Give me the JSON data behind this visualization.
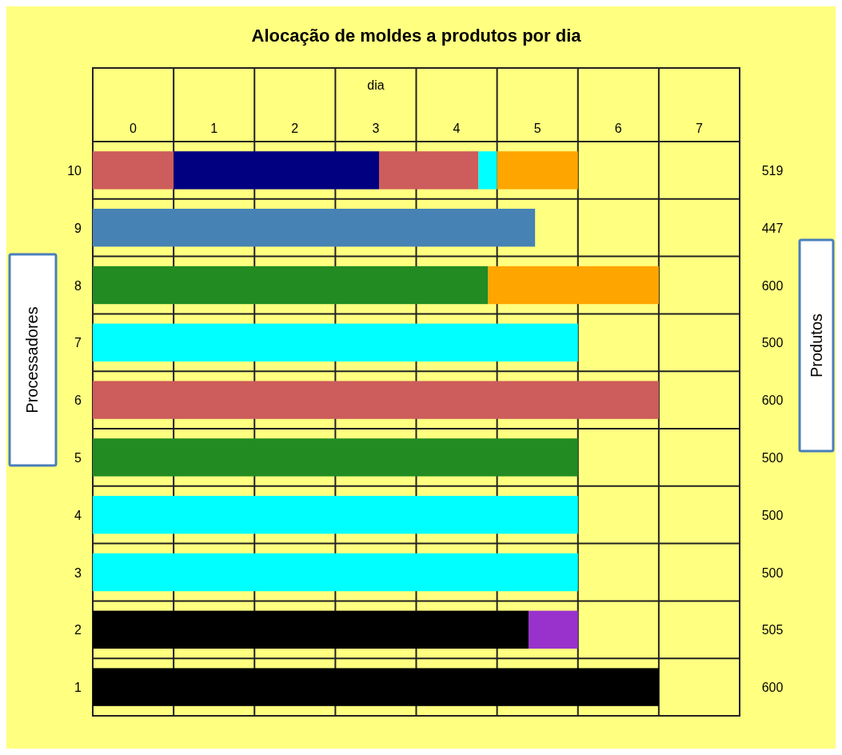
{
  "chart_data": {
    "type": "bar",
    "orientation": "horizontal",
    "stacked": true,
    "title": "Alocação de moldes a produtos por dia",
    "xlabel": "dia",
    "ylabel": "Processadores",
    "y2label": "Produtos",
    "categories": [
      "10",
      "9",
      "8",
      "7",
      "6",
      "5",
      "4",
      "3",
      "2",
      "1"
    ],
    "series": [
      {
        "colors": [
          "#cd5c5c",
          "#4682b4",
          "#228b22",
          "#00ffff",
          "#cd5c5c",
          "#228b22",
          "#00ffff",
          "#00ffff",
          "#000000",
          "#000000"
        ],
        "values": [
          1,
          5.47,
          4.89,
          6,
          7,
          6,
          6,
          6,
          5.39,
          7
        ]
      },
      {
        "colors": [
          "#000080",
          null,
          "#ffa500",
          null,
          null,
          null,
          null,
          null,
          "#9932cc",
          null
        ],
        "values": [
          2.54,
          null,
          2.11,
          null,
          null,
          null,
          null,
          null,
          0.61,
          null
        ]
      },
      {
        "colors": [
          "#cd5c5c",
          null,
          null,
          null,
          null,
          null,
          null,
          null,
          null,
          null
        ],
        "values": [
          1.23,
          null,
          null,
          null,
          null,
          null,
          null,
          null,
          null,
          null
        ]
      },
      {
        "colors": [
          "#00ffff",
          null,
          null,
          null,
          null,
          null,
          null,
          null,
          null,
          null
        ],
        "values": [
          0.23,
          null,
          null,
          null,
          null,
          null,
          null,
          null,
          null,
          null
        ]
      },
      {
        "colors": [
          "#ffa500",
          null,
          null,
          null,
          null,
          null,
          null,
          null,
          null,
          null
        ],
        "values": [
          1.0,
          null,
          null,
          null,
          null,
          null,
          null,
          null,
          null,
          null
        ]
      }
    ],
    "y2_categories": [
      "519",
      "447",
      "600",
      "500",
      "600",
      "500",
      "500",
      "500",
      "505",
      "600"
    ],
    "xlim": [
      0,
      8
    ],
    "xticks": [
      {
        "value": 0,
        "label": null
      },
      {
        "value": 0.5,
        "label": "0"
      },
      {
        "value": 1,
        "label": null
      },
      {
        "value": 1.5,
        "label": "1"
      },
      {
        "value": 2,
        "label": null
      },
      {
        "value": 2.5,
        "label": "2"
      },
      {
        "value": 3,
        "label": null
      },
      {
        "value": 3.5,
        "label": "3"
      },
      {
        "value": 4,
        "label": null
      },
      {
        "value": 4.5,
        "label": "4"
      },
      {
        "value": 5,
        "label": null
      },
      {
        "value": 5.5,
        "label": "5"
      },
      {
        "value": 6,
        "label": null
      },
      {
        "value": 6.5,
        "label": "6"
      },
      {
        "value": 7,
        "label": null
      },
      {
        "value": 7.5,
        "label": "7"
      },
      {
        "value": 8,
        "label": null
      }
    ],
    "grid": true
  }
}
